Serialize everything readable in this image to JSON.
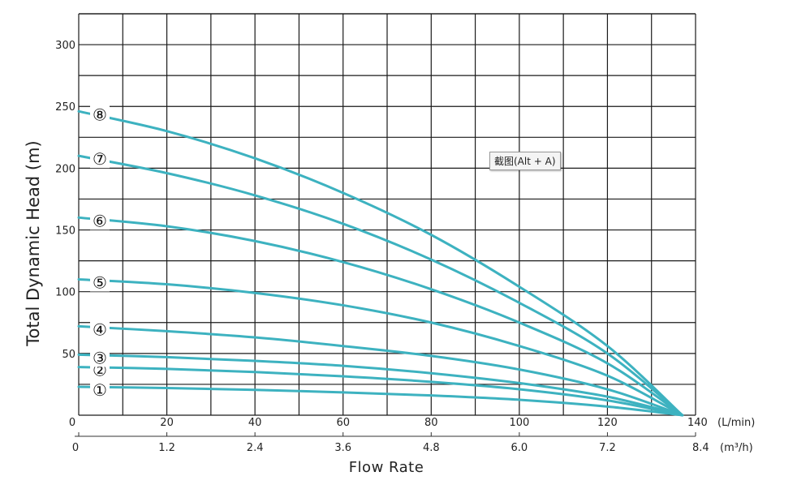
{
  "tooltip": {
    "text": "截图(Alt + A)"
  },
  "chart_data": {
    "type": "line",
    "xlabel": "Flow Rate",
    "ylabel": "Total Dynamic Head (m)",
    "x_unit_primary": "(L/min)",
    "x_unit_secondary": "(m³/h)",
    "xlim": [
      0,
      140
    ],
    "ylim": [
      0,
      325
    ],
    "x_ticks_primary": [
      "0",
      "20",
      "40",
      "60",
      "80",
      "100",
      "120",
      "140"
    ],
    "x_ticks_secondary": [
      "0",
      "1.2",
      "2.4",
      "3.6",
      "4.8",
      "6.0",
      "7.2",
      "8.4"
    ],
    "y_ticks": [
      "50",
      "100",
      "150",
      "200",
      "250",
      "300"
    ],
    "grid": true,
    "line_color": "#3db2c0",
    "series": [
      {
        "name": "①",
        "x": [
          0,
          20,
          40,
          60,
          80,
          100,
          120,
          137
        ],
        "y": [
          23,
          22,
          20.5,
          18.5,
          16,
          12.5,
          7,
          0
        ]
      },
      {
        "name": "②",
        "x": [
          0,
          20,
          40,
          60,
          80,
          100,
          120,
          137
        ],
        "y": [
          39,
          37.5,
          35,
          31.5,
          27,
          21,
          12,
          0
        ]
      },
      {
        "name": "③",
        "x": [
          0,
          20,
          40,
          60,
          80,
          100,
          120,
          137
        ],
        "y": [
          49,
          47,
          44,
          40,
          34,
          26,
          15,
          0
        ]
      },
      {
        "name": "④",
        "x": [
          0,
          20,
          40,
          60,
          80,
          100,
          120,
          137
        ],
        "y": [
          72,
          68,
          63,
          56,
          48,
          37,
          21,
          0
        ]
      },
      {
        "name": "⑤",
        "x": [
          0,
          20,
          40,
          60,
          80,
          100,
          120,
          137
        ],
        "y": [
          110,
          106,
          99,
          89,
          75,
          56,
          32,
          0
        ]
      },
      {
        "name": "⑥",
        "x": [
          0,
          20,
          40,
          60,
          80,
          100,
          120,
          137
        ],
        "y": [
          160,
          153,
          141,
          124,
          102,
          75,
          42,
          0
        ]
      },
      {
        "name": "⑦",
        "x": [
          0,
          20,
          40,
          60,
          80,
          100,
          120,
          137
        ],
        "y": [
          210,
          196,
          178,
          155,
          126,
          91,
          50,
          0
        ]
      },
      {
        "name": "⑧",
        "x": [
          0,
          20,
          40,
          60,
          80,
          100,
          120,
          137
        ],
        "y": [
          246,
          230,
          208,
          180,
          146,
          104,
          56,
          0
        ]
      }
    ]
  }
}
